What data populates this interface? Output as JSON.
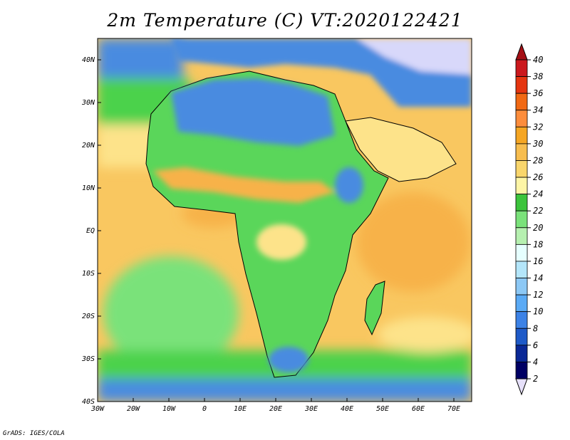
{
  "title": "2m Temperature (C) VT:2020122421",
  "credit": "GrADS: IGES/COLA",
  "map": {
    "lon_range": [
      -30,
      75
    ],
    "lat_range": [
      -40,
      45
    ],
    "lon_ticks": [
      {
        "value": -30,
        "label": "30W"
      },
      {
        "value": -20,
        "label": "20W"
      },
      {
        "value": -10,
        "label": "10W"
      },
      {
        "value": 0,
        "label": "0"
      },
      {
        "value": 10,
        "label": "10E"
      },
      {
        "value": 20,
        "label": "20E"
      },
      {
        "value": 30,
        "label": "30E"
      },
      {
        "value": 40,
        "label": "40E"
      },
      {
        "value": 50,
        "label": "50E"
      },
      {
        "value": 60,
        "label": "60E"
      },
      {
        "value": 70,
        "label": "70E"
      }
    ],
    "lat_ticks": [
      {
        "value": 40,
        "label": "40N"
      },
      {
        "value": 30,
        "label": "30N"
      },
      {
        "value": 20,
        "label": "20N"
      },
      {
        "value": 10,
        "label": "10N"
      },
      {
        "value": 0,
        "label": "EQ"
      },
      {
        "value": -10,
        "label": "10S"
      },
      {
        "value": -20,
        "label": "20S"
      },
      {
        "value": -30,
        "label": "30S"
      },
      {
        "value": -40,
        "label": "40S"
      }
    ]
  },
  "colorbar": {
    "labels": [
      "40",
      "38",
      "36",
      "34",
      "32",
      "30",
      "28",
      "26",
      "24",
      "22",
      "20",
      "18",
      "16",
      "14",
      "12",
      "10",
      "8",
      "6",
      "4",
      "2"
    ],
    "colors": [
      "#a50f15",
      "#cb181d",
      "#e53510",
      "#f16913",
      "#fd8d3c",
      "#f5a623",
      "#f7bd4e",
      "#f9d66c",
      "#fdf5a6",
      "#3cc43c",
      "#7ae27a",
      "#b6f0b0",
      "#e6ffff",
      "#b4e6fa",
      "#8cc8f5",
      "#5aaaf5",
      "#3c82e6",
      "#1e5ac8",
      "#0a2896",
      "#000064",
      "#e6e0fa"
    ]
  },
  "legend_colors": {
    "ocean_warm": "#f9c760",
    "ocean_hot": "#f7b24a",
    "ocean_mild": "#fde38a",
    "ocean_cool": "#7ae27a",
    "ocean_south": "#4bd24b",
    "land_green": "#5ad65a",
    "land_cold": "#4a8be0",
    "land_frost": "#d8d8fa"
  }
}
